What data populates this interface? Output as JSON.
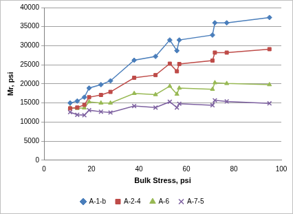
{
  "chart_data": {
    "type": "line",
    "x_label": "Bulk Stress, psi",
    "y_label": "Mr, psi",
    "x": [
      11,
      14,
      17,
      19,
      24,
      28,
      38,
      47,
      53,
      56,
      57,
      71,
      72,
      77,
      95
    ],
    "series": [
      {
        "name": "A-1-b",
        "color": "#4a7ebb",
        "marker": "diamond",
        "values": [
          15000,
          15500,
          16500,
          18900,
          19800,
          20800,
          26200,
          27200,
          31500,
          28700,
          31500,
          32800,
          36000,
          36000,
          37400
        ]
      },
      {
        "name": "A-2-4",
        "color": "#be4b48",
        "marker": "square",
        "values": [
          13600,
          13800,
          14500,
          16500,
          17100,
          17900,
          21600,
          22300,
          25300,
          23300,
          25200,
          26100,
          28200,
          28200,
          29100
        ]
      },
      {
        "name": "A-6",
        "color": "#98b954",
        "marker": "triangle",
        "values": [
          13700,
          13600,
          13700,
          15300,
          15000,
          15000,
          17500,
          17200,
          19400,
          17300,
          18900,
          18600,
          20300,
          20100,
          19800
        ]
      },
      {
        "name": "A-7-5",
        "color": "#7d60a0",
        "marker": "x",
        "values": [
          12600,
          11900,
          11800,
          13100,
          12700,
          12500,
          14200,
          13800,
          15300,
          13800,
          14800,
          14400,
          15700,
          15400,
          14900
        ]
      }
    ],
    "xlim": [
      0,
      100
    ],
    "xticks": [
      0,
      20,
      40,
      60,
      80,
      100
    ],
    "ylim": [
      0,
      40000
    ],
    "yticks": [
      0,
      5000,
      10000,
      15000,
      20000,
      25000,
      30000,
      35000,
      40000
    ],
    "grid": "y",
    "legend": "bottom"
  }
}
